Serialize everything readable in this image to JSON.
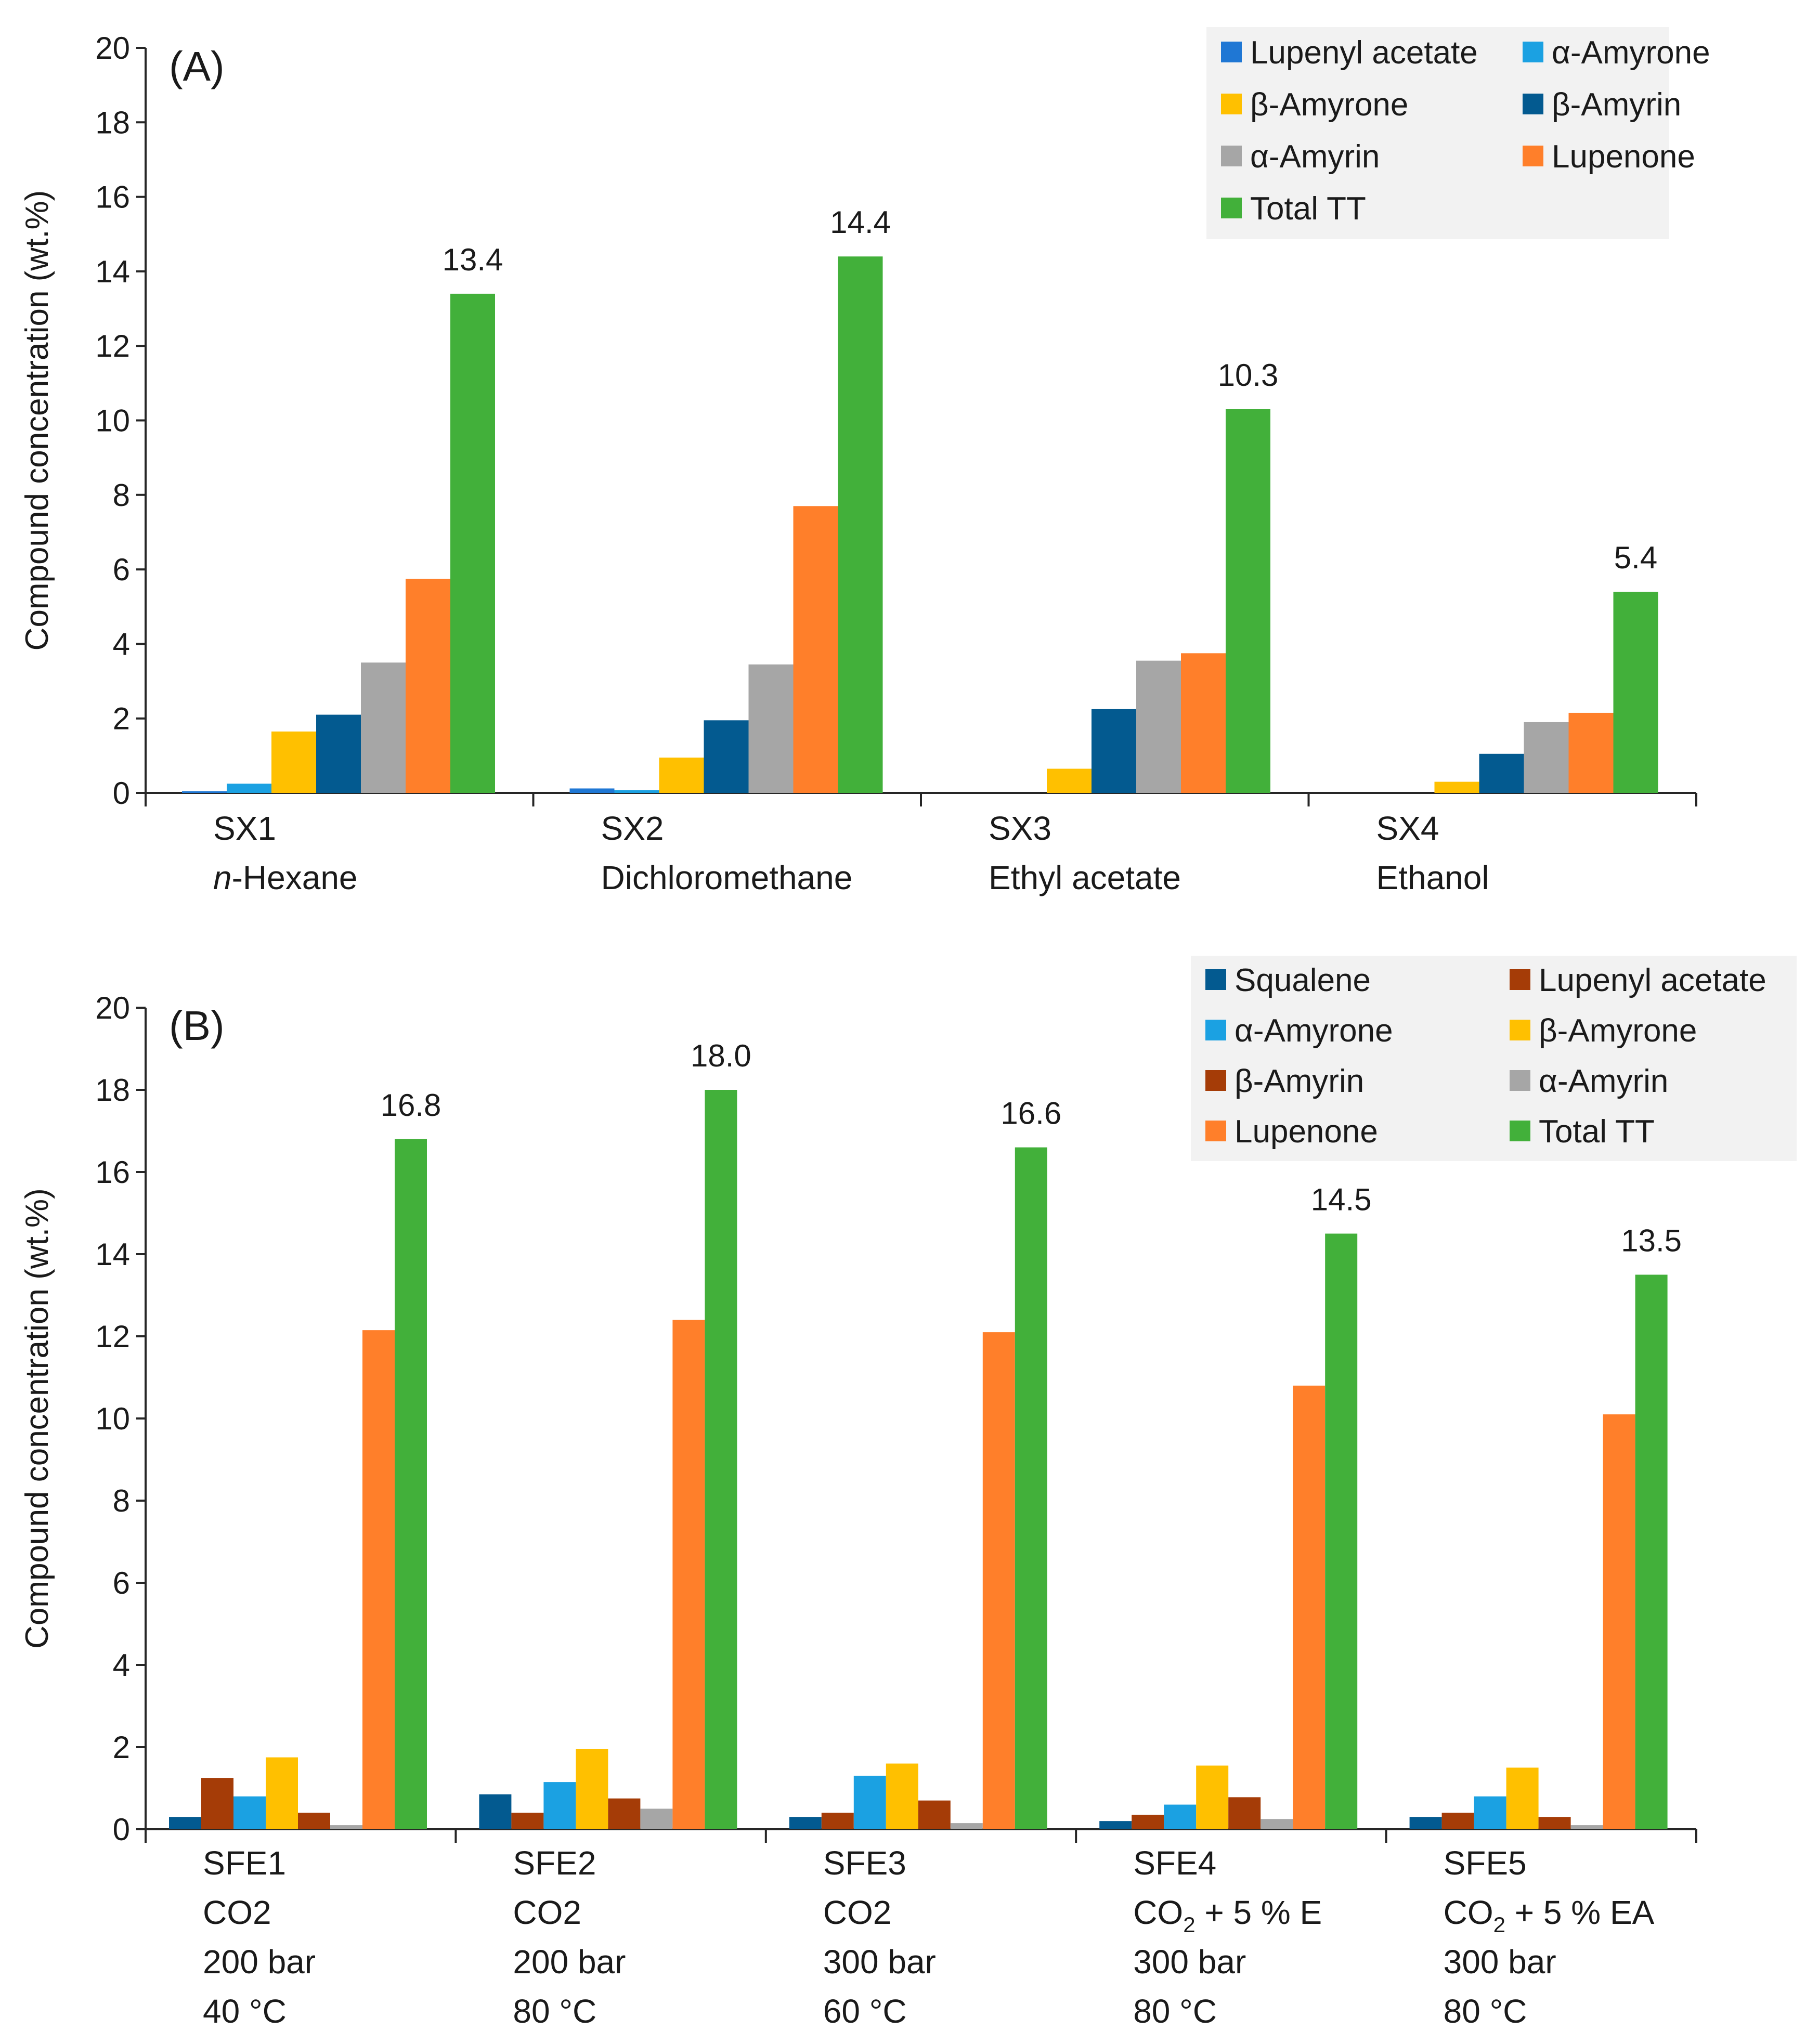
{
  "chart_data": [
    {
      "type": "bar",
      "panel": "(A)",
      "ylabel": "Compound concentration (wt.%)",
      "ylim": [
        0,
        20
      ],
      "yticks": [
        "0",
        "2",
        "4",
        "6",
        "8",
        "10",
        "12",
        "14",
        "16",
        "18",
        "20"
      ],
      "categories": [
        {
          "lines": [
            "SX1",
            "n-Hexane"
          ],
          "italic_prefix": "n"
        },
        {
          "lines": [
            "SX2",
            "Dichloromethane"
          ]
        },
        {
          "lines": [
            "SX3",
            "Ethyl acetate"
          ]
        },
        {
          "lines": [
            "SX4",
            "Ethanol"
          ]
        }
      ],
      "series": [
        {
          "name": "Lupenyl acetate",
          "color": "#1f77d4",
          "values": [
            0.05,
            0.12,
            0.0,
            0.0
          ]
        },
        {
          "name": "α-Amyrone",
          "color": "#1ba1e2",
          "values": [
            0.25,
            0.08,
            0.0,
            0.0
          ]
        },
        {
          "name": "β-Amyrone",
          "color": "#ffc000",
          "values": [
            1.65,
            0.95,
            0.65,
            0.3
          ]
        },
        {
          "name": "β-Amyrin",
          "color": "#035a90",
          "values": [
            2.1,
            1.95,
            2.25,
            1.05
          ]
        },
        {
          "name": "α-Amyrin",
          "color": "#a6a6a6",
          "values": [
            3.5,
            3.45,
            3.55,
            1.9
          ]
        },
        {
          "name": "Lupenone",
          "color": "#ff7f2a",
          "values": [
            5.75,
            7.7,
            3.75,
            2.15
          ]
        },
        {
          "name": "Total TT",
          "color": "#42b03a",
          "values": [
            13.4,
            14.4,
            10.3,
            5.4
          ]
        }
      ],
      "total_labels": [
        "13.4",
        "14.4",
        "10.3",
        "5.4"
      ],
      "legend_position": "top-right"
    },
    {
      "type": "bar",
      "panel": "(B)",
      "ylabel": "Compound concentration (wt.%)",
      "ylim": [
        0,
        20
      ],
      "yticks": [
        "0",
        "2",
        "4",
        "6",
        "8",
        "10",
        "12",
        "14",
        "16",
        "18",
        "20"
      ],
      "categories": [
        {
          "lines": [
            "SFE1",
            "CO2",
            "200 bar",
            "40 °C"
          ]
        },
        {
          "lines": [
            "SFE2",
            "CO2",
            "200 bar",
            "80 °C"
          ]
        },
        {
          "lines": [
            "SFE3",
            "CO2",
            "300 bar",
            "60 °C"
          ]
        },
        {
          "lines": [
            "SFE4",
            "CO₂ + 5 % E",
            "300 bar",
            "80 °C"
          ]
        },
        {
          "lines": [
            "SFE5",
            "CO₂ + 5 % EA",
            "300 bar",
            "80 °C"
          ]
        }
      ],
      "series": [
        {
          "name": "Squalene",
          "color": "#035a90",
          "values": [
            0.3,
            0.85,
            0.3,
            0.2,
            0.3
          ]
        },
        {
          "name": "Lupenyl acetate",
          "color": "#a53c07",
          "values": [
            1.25,
            0.4,
            0.4,
            0.35,
            0.4
          ]
        },
        {
          "name": "α-Amyrone",
          "color": "#1ba1e2",
          "values": [
            0.8,
            1.15,
            1.3,
            0.6,
            0.8
          ]
        },
        {
          "name": "β-Amyrone",
          "color": "#ffc000",
          "values": [
            1.75,
            1.95,
            1.6,
            1.55,
            1.5
          ]
        },
        {
          "name": "β-Amyrin",
          "color": "#a53c07",
          "values": [
            0.4,
            0.75,
            0.7,
            0.78,
            0.3
          ]
        },
        {
          "name": "α-Amyrin",
          "color": "#a6a6a6",
          "values": [
            0.1,
            0.5,
            0.15,
            0.25,
            0.1
          ]
        },
        {
          "name": "Lupenone",
          "color": "#ff7f2a",
          "values": [
            12.15,
            12.4,
            12.1,
            10.8,
            10.1
          ]
        },
        {
          "name": "Total TT",
          "color": "#42b03a",
          "values": [
            16.8,
            18.0,
            16.6,
            14.5,
            13.5
          ]
        }
      ],
      "total_labels": [
        "16.8",
        "18.0",
        "16.6",
        "14.5",
        "13.5"
      ],
      "legend_position": "top-right"
    }
  ]
}
